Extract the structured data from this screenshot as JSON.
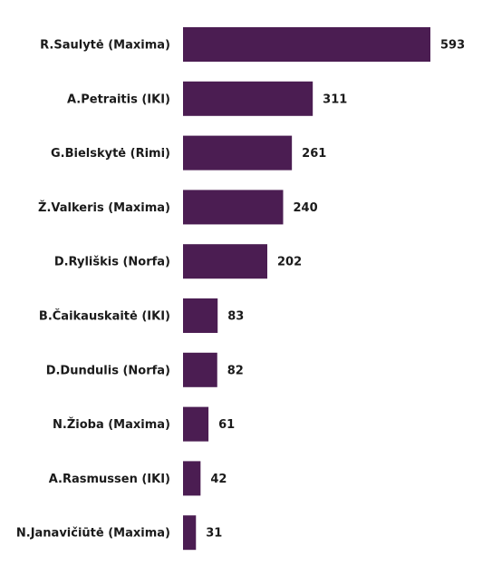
{
  "chart_data": {
    "type": "bar",
    "orientation": "horizontal",
    "title": "",
    "xlabel": "",
    "ylabel": "",
    "categories": [
      "R.Saulytė (Maxima)",
      "A.Petraitis (IKI)",
      "G.Bielskytė (Rimi)",
      "Ž.Valkeris (Maxima)",
      "D.Ryliškis (Norfa)",
      "B.Čaikauskaitė (IKI)",
      "D.Dundulis (Norfa)",
      "N.Žioba (Maxima)",
      "A.Rasmussen (IKI)",
      "N.Janavičiūtė (Maxima)"
    ],
    "values": [
      593,
      311,
      261,
      240,
      202,
      83,
      82,
      61,
      42,
      31
    ],
    "xlim": [
      0,
      593
    ],
    "grid": false,
    "legend": "none",
    "bar_color": "#4b1d52"
  }
}
